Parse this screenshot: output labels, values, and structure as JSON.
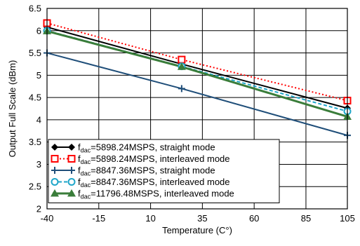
{
  "chart_data": {
    "type": "line",
    "xlabel": "Temperature (C°)",
    "ylabel": "Output Full Scale (dBm)",
    "xlim": [
      -40,
      105
    ],
    "ylim": [
      2,
      6.5
    ],
    "xticks": [
      "-40",
      "-15",
      "10",
      "35",
      "60",
      "85",
      "105"
    ],
    "yticks": [
      "2",
      "2.5",
      "3",
      "3.5",
      "4",
      "4.5",
      "5",
      "5.5",
      "6",
      "6.5"
    ],
    "grid": true,
    "legend_position": "bottom-left",
    "series": [
      {
        "name_prefix": "f",
        "name_sub": "dac",
        "name_rest": "=5898.24MSPS, straight mode",
        "color": "#000000",
        "dash": "solid",
        "marker": "diamond",
        "x": [
          -40,
          25,
          105
        ],
        "y": [
          6.08,
          5.25,
          4.26
        ]
      },
      {
        "name_prefix": "f",
        "name_sub": "dac",
        "name_rest": "=5898.24MSPS, interleaved mode",
        "color": "#ff0000",
        "dash": "dotted",
        "marker": "square",
        "x": [
          -40,
          25,
          105
        ],
        "y": [
          6.17,
          5.35,
          4.43
        ]
      },
      {
        "name_prefix": "f",
        "name_sub": "dac",
        "name_rest": "=8847.36MSPS, straight mode",
        "color": "#1f4e79",
        "dash": "solid",
        "marker": "plus",
        "x": [
          -40,
          25,
          105
        ],
        "y": [
          5.5,
          4.7,
          3.65
        ]
      },
      {
        "name_prefix": "f",
        "name_sub": "dac",
        "name_rest": "=8847.36MSPS, interleaved mode",
        "color": "#1fa6c9",
        "dash": "dashed",
        "marker": "circle",
        "x": [
          -40,
          25,
          105
        ],
        "y": [
          6.0,
          5.2,
          4.19
        ]
      },
      {
        "name_prefix": "f",
        "name_sub": "dac",
        "name_rest": "=11796.48MSPS, interleaved mode",
        "color": "#3a7d3a",
        "dash": "solid",
        "marker": "triangle",
        "x": [
          -40,
          25,
          105
        ],
        "y": [
          5.99,
          5.19,
          4.07
        ]
      }
    ]
  }
}
